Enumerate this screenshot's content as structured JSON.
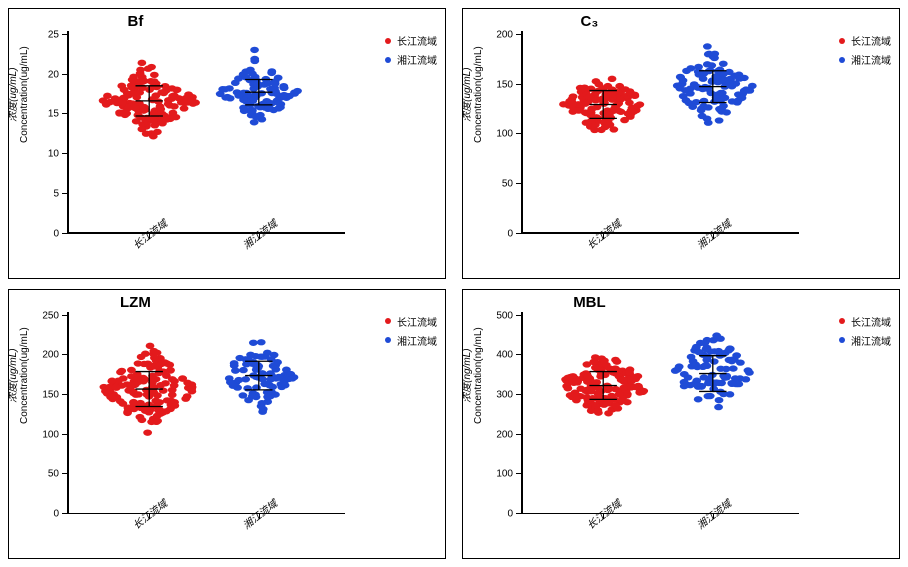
{
  "colors": {
    "group1": "#e31a1c",
    "group2": "#1f4bd6",
    "axis": "#000000",
    "background": "#ffffff"
  },
  "legend": {
    "group1_label": "长江流域",
    "group2_label": "湘江流域"
  },
  "axis_labels": {
    "y_line1": "浓度(ug/mL)",
    "y_line2": "Concentration(ug/mL)",
    "y_line1_ng": "浓度(ng/mL)",
    "y_line2_ng": "Concentration(ng/mL)",
    "cat1": "长江流域",
    "cat2": "湘江流域"
  },
  "panels": {
    "bf": {
      "title": "Bf",
      "unit": "ug",
      "ylim": [
        0,
        25
      ],
      "yticks": [
        0,
        5,
        10,
        15,
        20,
        25
      ],
      "groups": [
        {
          "color_key": "group1",
          "mean": 16.7,
          "sd": 1.9,
          "n": 140,
          "spread": 0.18
        },
        {
          "color_key": "group2",
          "mean": 17.8,
          "sd": 1.6,
          "n": 95,
          "spread": 0.15
        }
      ]
    },
    "c3": {
      "title": "C₃",
      "unit": "ug",
      "ylim": [
        0,
        200
      ],
      "yticks": [
        0,
        50,
        100,
        150,
        200
      ],
      "groups": [
        {
          "color_key": "group1",
          "mean": 130,
          "sd": 14,
          "n": 125,
          "spread": 0.16
        },
        {
          "color_key": "group2",
          "mean": 148,
          "sd": 16,
          "n": 100,
          "spread": 0.16
        }
      ]
    },
    "lzm": {
      "title": "LZM",
      "unit": "ug",
      "ylim": [
        0,
        250
      ],
      "yticks": [
        0,
        50,
        100,
        150,
        200,
        250
      ],
      "groups": [
        {
          "color_key": "group1",
          "mean": 158,
          "sd": 22,
          "n": 145,
          "spread": 0.18
        },
        {
          "color_key": "group2",
          "mean": 175,
          "sd": 18,
          "n": 90,
          "spread": 0.14
        }
      ]
    },
    "mbl": {
      "title": "MBL",
      "unit": "ng",
      "ylim": [
        0,
        500
      ],
      "yticks": [
        0,
        100,
        200,
        300,
        400,
        500
      ],
      "groups": [
        {
          "color_key": "group1",
          "mean": 325,
          "sd": 35,
          "n": 150,
          "spread": 0.18
        },
        {
          "color_key": "group2",
          "mean": 355,
          "sd": 45,
          "n": 95,
          "spread": 0.15
        }
      ]
    }
  },
  "style": {
    "title_fontsize": 15,
    "tick_fontsize": 10,
    "marker_radius": 1.6,
    "errorbar_capwidth": 10,
    "errorbar_linewidth": 1.3,
    "category_centers": [
      0.3,
      0.7
    ]
  }
}
